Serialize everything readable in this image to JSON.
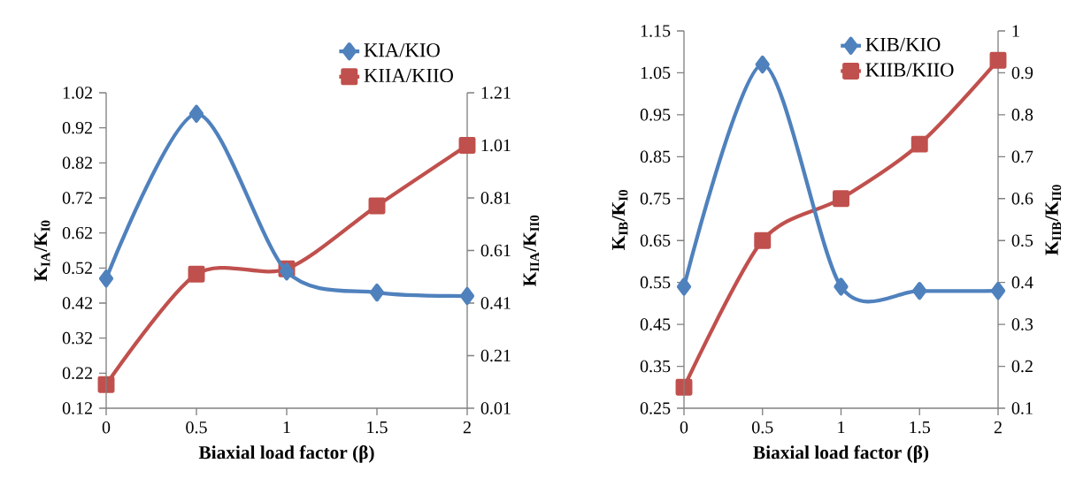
{
  "chart_data": [
    {
      "type": "line",
      "xlabel": "Biaxial load factor (β)",
      "ylabel": "K$_{IA}$/K$_{I0}$",
      "y2label": "K$_{IIA}$/K$_{II0}$",
      "x": [
        0,
        0.5,
        1,
        1.5,
        2
      ],
      "xlim": [
        0,
        2
      ],
      "xticks": [
        0,
        0.5,
        1,
        1.5,
        2
      ],
      "ylim": [
        0.12,
        1.02
      ],
      "yticks": [
        0.12,
        0.22,
        0.32,
        0.42,
        0.52,
        0.62,
        0.72,
        0.82,
        0.92,
        1.02
      ],
      "y2lim": [
        0.01,
        1.21
      ],
      "y2ticks": [
        0.01,
        0.21,
        0.41,
        0.61,
        0.81,
        1.01,
        1.21
      ],
      "legend": "top",
      "series": [
        {
          "name": "KIA/KIO",
          "color": "#4f81bd",
          "marker": "diamond",
          "values": [
            0.49,
            0.96,
            0.51,
            0.45,
            0.44
          ]
        },
        {
          "name": "KIIA/KIIO",
          "color": "#c0504d",
          "marker": "square",
          "axis": "y2",
          "values": [
            0.1,
            0.52,
            0.54,
            0.78,
            1.01
          ]
        }
      ]
    },
    {
      "type": "line",
      "xlabel": "Biaxial load factor (β)",
      "ylabel": "K$_{IB}$/K$_{I0}$",
      "y2label": "K$_{IIB}$/K$_{II0}$",
      "x": [
        0,
        0.5,
        1,
        1.5,
        2
      ],
      "xlim": [
        0,
        2
      ],
      "xticks": [
        0,
        0.5,
        1,
        1.5,
        2
      ],
      "ylim": [
        0.25,
        1.15
      ],
      "yticks": [
        0.25,
        0.35,
        0.45,
        0.55,
        0.65,
        0.75,
        0.85,
        0.95,
        1.05,
        1.15
      ],
      "y2lim": [
        0.1,
        1
      ],
      "y2ticks": [
        0.1,
        0.2,
        0.3,
        0.4,
        0.5,
        0.6,
        0.7,
        0.8,
        0.9,
        1
      ],
      "legend": "top right",
      "series": [
        {
          "name": "KIB/KIO",
          "color": "#4f81bd",
          "marker": "diamond",
          "values": [
            0.54,
            1.07,
            0.54,
            0.53,
            0.53
          ]
        },
        {
          "name": "KIIB/KIIO",
          "color": "#c0504d",
          "marker": "square",
          "axis": "y2",
          "values": [
            0.15,
            0.5,
            0.6,
            0.73,
            0.93
          ]
        }
      ]
    }
  ]
}
